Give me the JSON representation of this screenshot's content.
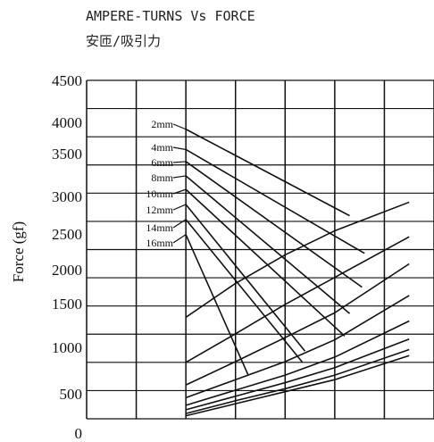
{
  "chart_data": {
    "type": "line",
    "title": "AMPERE-TURNS Vs FORCE",
    "subtitle": "安匝/吸引力",
    "xlabel": "",
    "ylabel": "Force (gf)",
    "ylim": [
      0,
      4500
    ],
    "y_ticks": [
      0,
      500,
      1000,
      1500,
      2000,
      2500,
      3000,
      3500,
      4000,
      4500
    ],
    "x_columns": 7,
    "x_plot_range": [
      2,
      6.6
    ],
    "series": [
      {
        "name": "2mm",
        "x": [
          2.0,
          5.3
        ],
        "y": [
          3850,
          2700
        ]
      },
      {
        "name": "4mm",
        "x": [
          2.0,
          5.6
        ],
        "y": [
          3580,
          2200
        ]
      },
      {
        "name": "6mm",
        "x": [
          2.0,
          5.55
        ],
        "y": [
          3420,
          1750
        ]
      },
      {
        "name": "8mm",
        "x": [
          2.0,
          5.3
        ],
        "y": [
          3230,
          1400
        ]
      },
      {
        "name": "10mm",
        "x": [
          2.0,
          5.2
        ],
        "y": [
          3050,
          1100
        ]
      },
      {
        "name": "12mm",
        "x": [
          2.0,
          4.4
        ],
        "y": [
          2850,
          900
        ]
      },
      {
        "name": "14mm",
        "x": [
          2.0,
          4.35
        ],
        "y": [
          2650,
          750
        ]
      },
      {
        "name": "16mm",
        "x": [
          2.0,
          3.25
        ],
        "y": [
          2450,
          590
        ]
      },
      {
        "name": "",
        "x": [
          2.0,
          3.0,
          4.0,
          5.0,
          6.5
        ],
        "y": [
          1350,
          1800,
          2180,
          2500,
          2880
        ]
      },
      {
        "name": "",
        "x": [
          2.0,
          3.0,
          4.0,
          5.0,
          6.5
        ],
        "y": [
          750,
          1130,
          1520,
          1880,
          2420
        ]
      },
      {
        "name": "",
        "x": [
          2.0,
          3.0,
          4.0,
          5.0,
          6.5
        ],
        "y": [
          450,
          760,
          1080,
          1410,
          2060
        ]
      },
      {
        "name": "",
        "x": [
          2.0,
          3.0,
          4.0,
          5.0,
          6.5
        ],
        "y": [
          280,
          520,
          760,
          1050,
          1640
        ]
      },
      {
        "name": "",
        "x": [
          2.0,
          3.0,
          4.0,
          5.0,
          6.5
        ],
        "y": [
          180,
          380,
          580,
          820,
          1300
        ]
      },
      {
        "name": "",
        "x": [
          2.0,
          3.0,
          4.0,
          5.0,
          6.5
        ],
        "y": [
          120,
          300,
          480,
          680,
          1060
        ]
      },
      {
        "name": "",
        "x": [
          2.0,
          3.0,
          4.0,
          5.0,
          6.5
        ],
        "y": [
          70,
          240,
          400,
          580,
          920
        ]
      },
      {
        "name": "",
        "x": [
          2.0,
          3.0,
          4.0,
          5.0,
          6.5
        ],
        "y": [
          40,
          200,
          360,
          520,
          840
        ]
      }
    ],
    "label_order": [
      "2mm",
      "4mm",
      "6mm",
      "8mm",
      "10mm",
      "12mm",
      "14mm",
      "16mm"
    ],
    "grid": true,
    "legend": "left-inside (leader lines to series)"
  }
}
